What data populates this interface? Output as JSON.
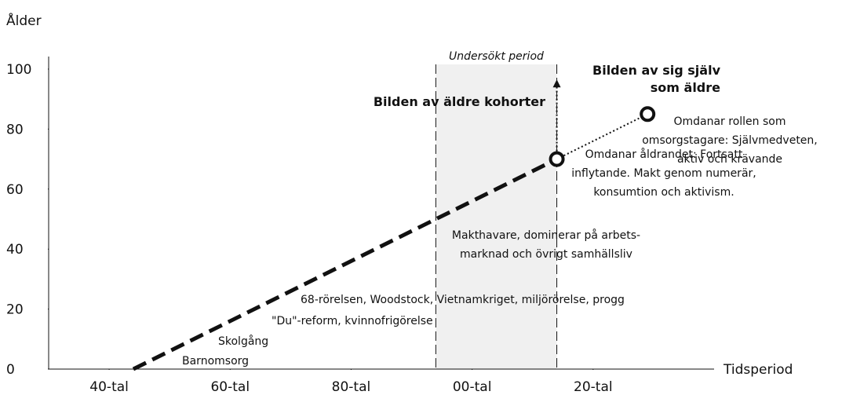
{
  "chart_data": {
    "type": "line",
    "y_axis_label": "Ålder",
    "x_axis_label": "Tidsperiod",
    "xlim": [
      1930,
      2040
    ],
    "xticks": [
      {
        "value": 1940,
        "label": "40-tal"
      },
      {
        "value": 1960,
        "label": "60-tal"
      },
      {
        "value": 1980,
        "label": "80-tal"
      },
      {
        "value": 2000,
        "label": "00-tal"
      },
      {
        "value": 2020,
        "label": "20-tal"
      }
    ],
    "ylim": [
      0,
      100
    ],
    "yticks": [
      0,
      20,
      40,
      60,
      80,
      100
    ],
    "shaded_period": {
      "x": [
        1994,
        2014
      ],
      "label": "Undersökt period"
    },
    "cohort_line": {
      "x": [
        1944,
        2014
      ],
      "values": [
        0,
        70
      ]
    },
    "arrows": [
      {
        "x": [
          2014,
          2014
        ],
        "values": [
          70,
          96
        ]
      },
      {
        "x": [
          2014,
          2029
        ],
        "values": [
          70,
          85
        ]
      }
    ],
    "markers": {
      "x": [
        2014,
        2029
      ],
      "values": [
        70,
        85
      ]
    },
    "headings": [
      [
        "Bilden av äldre kohorter"
      ],
      [
        "Bilden av sig själv",
        "som äldre"
      ]
    ],
    "annotations": [
      [
        "Barnomsorg"
      ],
      [
        "Skolgång"
      ],
      [
        "\"Du\"-reform, kvinnofrigörelse"
      ],
      [
        "68-rörelsen, Woodstock, Vietnamkriget, miljörörelse, progg"
      ],
      [
        "Makthavare, dominerar på arbets-",
        "marknad och övrigt samhällsliv"
      ],
      [
        "Omdanar åldrandet: Fortsatt",
        "inflytande. Makt genom numerär,",
        "konsumtion och aktivism."
      ],
      [
        "Omdanar rollen som",
        "omsorgstagare: Självmedveten,",
        "aktiv och krävande"
      ]
    ]
  }
}
